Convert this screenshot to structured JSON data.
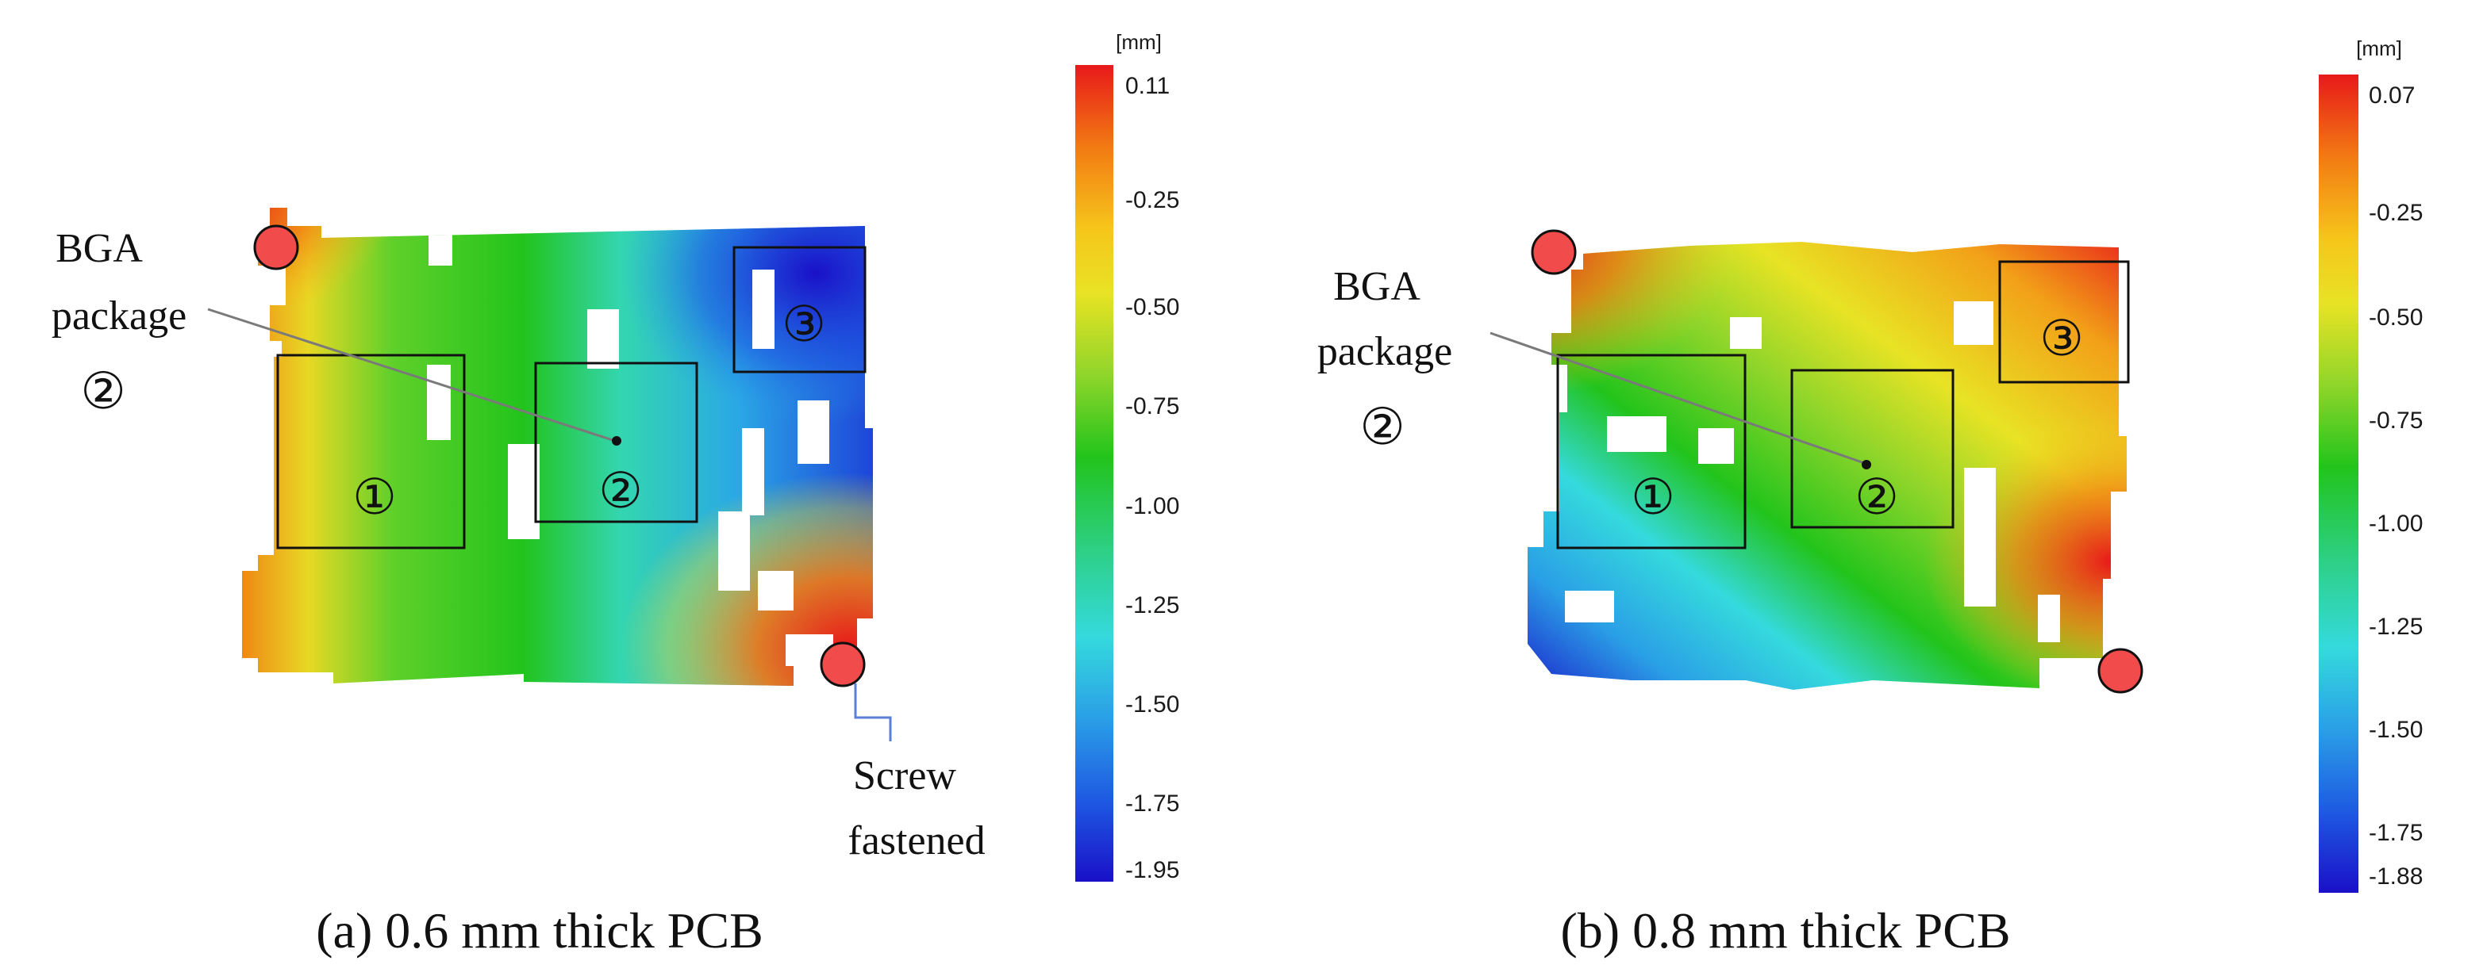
{
  "colormap": {
    "stops": [
      "#e8191a",
      "#f27a13",
      "#f6c51b",
      "#e8e324",
      "#8fd52a",
      "#22c41c",
      "#2ed08a",
      "#34dadd",
      "#2a9fe6",
      "#1e5ae2",
      "#1a10c8"
    ]
  },
  "panels": [
    {
      "caption": "(a) 0.6 mm thick PCB",
      "unit": "[mm]",
      "ticks": [
        "0.11",
        "-0.25",
        "-0.50",
        "-0.75",
        "-1.00",
        "-1.25",
        "-1.50",
        "-1.75",
        "-1.95"
      ],
      "bga_label_line1": "BGA",
      "bga_label_line2": "package",
      "bga_label_num": "②",
      "screw_label_line1": "Screw",
      "screw_label_line2": "fastened",
      "markers": [
        "①",
        "②",
        "③"
      ]
    },
    {
      "caption": "(b) 0.8 mm thick PCB",
      "unit": "[mm]",
      "ticks": [
        "0.07",
        "-0.25",
        "-0.50",
        "-0.75",
        "-1.00",
        "-1.25",
        "-1.50",
        "-1.75",
        "-1.88"
      ],
      "bga_label_line1": "BGA",
      "bga_label_line2": "package",
      "bga_label_num": "②",
      "markers": [
        "①",
        "②",
        "③"
      ]
    }
  ]
}
